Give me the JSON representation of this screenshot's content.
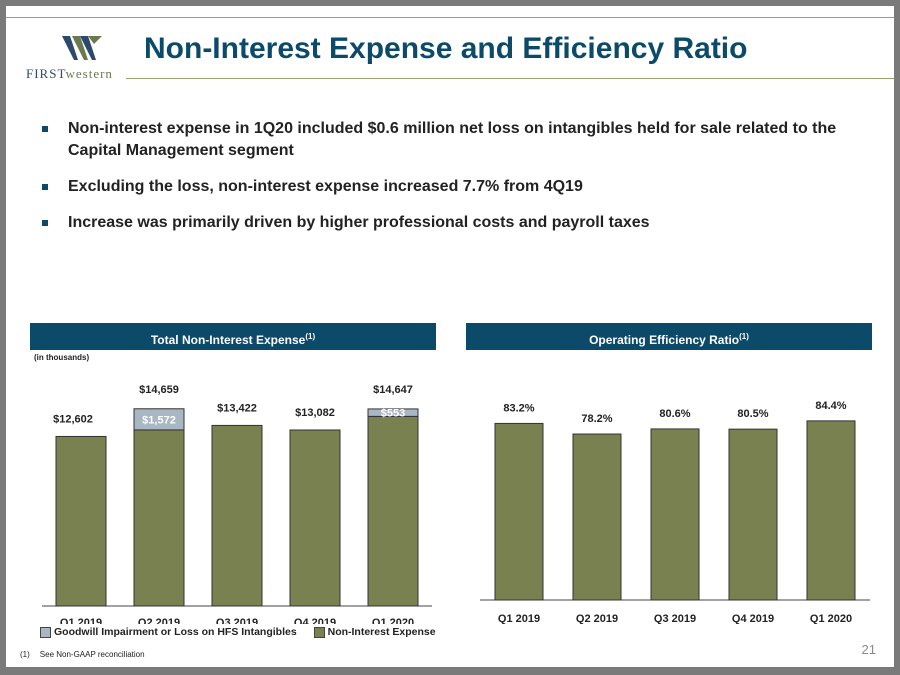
{
  "header": {
    "title": "Non-Interest Expense and Efficiency Ratio",
    "logo_text_first": "FIRST",
    "logo_text_western": "western"
  },
  "bullets": [
    "Non-interest expense in 1Q20 included $0.6 million net loss on intangibles held for sale related to the Capital Management segment",
    "Excluding the loss, non-interest expense increased 7.7% from 4Q19",
    "Increase was primarily driven by higher professional costs and payroll taxes"
  ],
  "left_panel": {
    "title": "Total Non-Interest Expense",
    "title_sup": "(1)",
    "units": "(in thousands)"
  },
  "right_panel": {
    "title": "Operating Efficiency Ratio",
    "title_sup": "(1)"
  },
  "colors": {
    "navy": "#0c4a6a",
    "olive": "#7a8150",
    "gray_blue": "#a9b6c4"
  },
  "chart_data": [
    {
      "type": "bar",
      "stacked": true,
      "categories": [
        "Q1 2019",
        "Q2 2019",
        "Q3 2019",
        "Q4 2019",
        "Q1 2020"
      ],
      "series": [
        {
          "name": "Non-Interest Expense",
          "values": [
            12602,
            13087,
            13422,
            13082,
            14094
          ]
        },
        {
          "name": "Goodwill Impairment or Loss on HFS Intangibles",
          "values": [
            0,
            1572,
            0,
            0,
            553
          ]
        }
      ],
      "totals": [
        12602,
        14659,
        13422,
        13082,
        14647
      ],
      "total_labels": [
        "$12,602",
        "$14,659",
        "$13,422",
        "$13,082",
        "$14,647"
      ],
      "segment_labels": [
        "",
        "$1,572",
        "",
        "",
        "$553"
      ],
      "ylim": [
        0,
        16500
      ],
      "legend": "bottom"
    },
    {
      "type": "bar",
      "categories": [
        "Q1 2019",
        "Q2 2019",
        "Q3 2019",
        "Q4 2019",
        "Q1 2020"
      ],
      "values": [
        83.2,
        78.2,
        80.6,
        80.5,
        84.4
      ],
      "value_labels": [
        "83.2%",
        "78.2%",
        "80.6%",
        "80.5%",
        "84.4%"
      ],
      "ylim": [
        0,
        98
      ]
    }
  ],
  "footnote": {
    "marker": "(1)",
    "text": "See Non-GAAP reconciliation"
  },
  "page_number": "21"
}
